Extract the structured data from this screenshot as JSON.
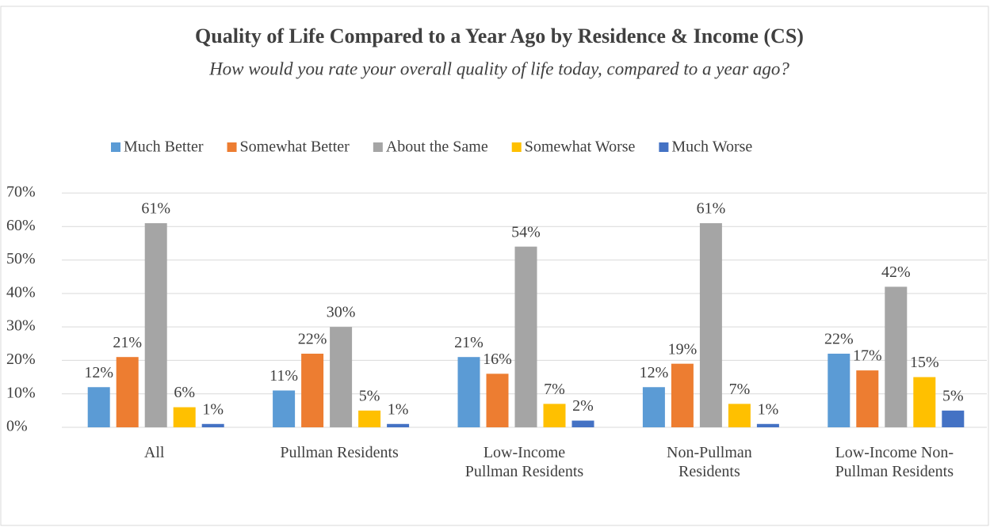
{
  "chart_data": {
    "type": "bar",
    "title": "Quality of Life Compared to a Year Ago by Residence & Income (CS)",
    "subtitle": "How would you rate your overall quality of life today, compared to a year ago?",
    "categories": [
      "All",
      "Pullman Residents",
      "Low-Income Pullman Residents",
      "Non-Pullman Residents",
      "Low-Income Non-Pullman Residents"
    ],
    "series": [
      {
        "name": "Much Better",
        "color": "#5b9bd5",
        "values": [
          12,
          11,
          21,
          12,
          22
        ],
        "value_labels": [
          "12%",
          "11%",
          "21%",
          "12%",
          "22%"
        ]
      },
      {
        "name": "Somewhat Better",
        "color": "#ed7d31",
        "values": [
          21,
          22,
          16,
          19,
          17
        ],
        "value_labels": [
          "21%",
          "22%",
          "16%",
          "19%",
          "17%"
        ]
      },
      {
        "name": "About the Same",
        "color": "#a5a5a5",
        "values": [
          61,
          30,
          54,
          61,
          42
        ],
        "value_labels": [
          "61%",
          "30%",
          "54%",
          "61%",
          "42%"
        ]
      },
      {
        "name": "Somewhat Worse",
        "color": "#ffc000",
        "values": [
          6,
          5,
          7,
          7,
          15
        ],
        "value_labels": [
          "6%",
          "5%",
          "7%",
          "7%",
          "15%"
        ]
      },
      {
        "name": "Much Worse",
        "color": "#4472c4",
        "values": [
          1,
          1,
          2,
          1,
          5
        ],
        "value_labels": [
          "1%",
          "1%",
          "2%",
          "1%",
          "5%"
        ]
      }
    ],
    "ylim": [
      0,
      70
    ],
    "yticks": [
      {
        "value": 0,
        "label": "0%"
      },
      {
        "value": 10,
        "label": "10%"
      },
      {
        "value": 20,
        "label": "20%"
      },
      {
        "value": 30,
        "label": "30%"
      },
      {
        "value": 40,
        "label": "40%"
      },
      {
        "value": 50,
        "label": "50%"
      },
      {
        "value": 60,
        "label": "60%"
      },
      {
        "value": 70,
        "label": "70%"
      }
    ],
    "grid": true,
    "legend": "top"
  }
}
